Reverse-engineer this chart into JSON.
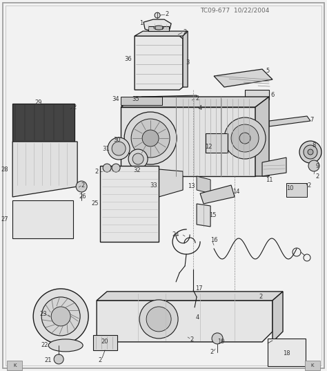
{
  "title": "TC09-677  10/22/2004",
  "bg_color": "#f2f2f2",
  "fig_width": 4.74,
  "fig_height": 5.37,
  "dpi": 100,
  "dc": "#1a1a1a",
  "lc": "#333333",
  "title_fs": 6.5,
  "label_fs": 6.0
}
